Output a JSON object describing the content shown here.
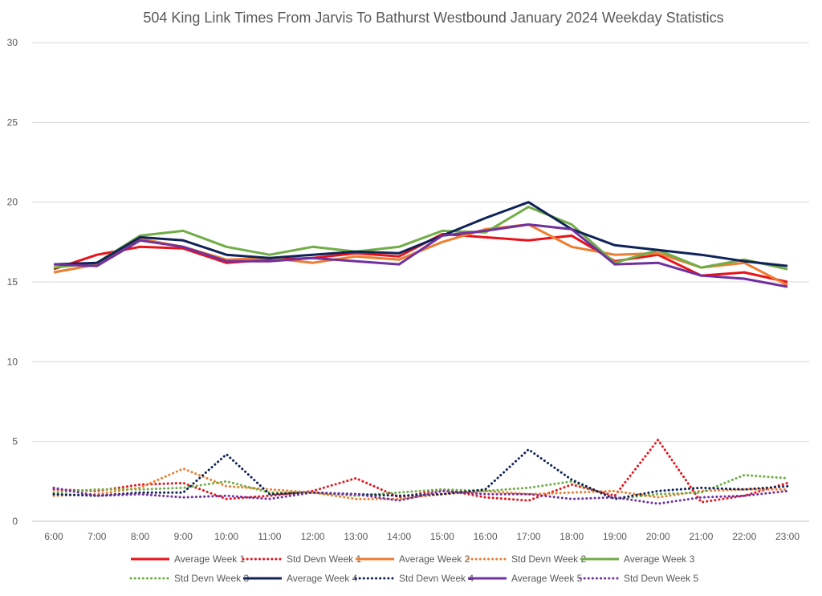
{
  "chart_data": {
    "type": "line",
    "title": "504 King Link Times From Jarvis To Bathurst Westbound January 2024 Weekday Statistics",
    "xlabel": "",
    "ylabel": "",
    "ylim": [
      0,
      30
    ],
    "yticks": [
      0,
      5,
      10,
      15,
      20,
      25,
      30
    ],
    "grid": true,
    "legend_position": "bottom",
    "categories": [
      "6:00",
      "7:00",
      "8:00",
      "9:00",
      "10:00",
      "11:00",
      "12:00",
      "13:00",
      "14:00",
      "15:00",
      "16:00",
      "17:00",
      "18:00",
      "19:00",
      "20:00",
      "21:00",
      "22:00",
      "23:00"
    ],
    "series": [
      {
        "name": "Average Week 1",
        "color": "#e8131b",
        "style": "solid",
        "values": [
          15.8,
          16.7,
          17.2,
          17.1,
          16.2,
          16.4,
          16.5,
          16.8,
          16.6,
          18.0,
          17.8,
          17.6,
          17.9,
          16.3,
          16.7,
          15.4,
          15.6,
          15.0
        ]
      },
      {
        "name": "Std Devn Week 1",
        "color": "#e8131b",
        "style": "dotted",
        "values": [
          2.0,
          1.9,
          2.3,
          2.4,
          1.4,
          1.6,
          1.9,
          2.7,
          1.5,
          2.0,
          1.5,
          1.3,
          2.3,
          1.6,
          5.1,
          1.2,
          1.6,
          2.4
        ]
      },
      {
        "name": "Average Week 2",
        "color": "#ed7d31",
        "style": "solid",
        "values": [
          15.6,
          16.1,
          17.7,
          17.2,
          16.4,
          16.5,
          16.2,
          16.6,
          16.4,
          17.5,
          18.3,
          18.6,
          17.2,
          16.7,
          16.8,
          15.9,
          16.2,
          14.8
        ]
      },
      {
        "name": "Std Devn Week 2",
        "color": "#ed7d31",
        "style": "dotted",
        "values": [
          1.6,
          1.7,
          2.1,
          3.3,
          2.2,
          2.0,
          1.8,
          1.4,
          1.4,
          1.7,
          1.9,
          1.7,
          1.8,
          1.9,
          1.5,
          1.9,
          2.0,
          2.0
        ]
      },
      {
        "name": "Average Week 3",
        "color": "#70ad47",
        "style": "solid",
        "values": [
          15.9,
          16.2,
          17.9,
          18.2,
          17.2,
          16.7,
          17.2,
          16.9,
          17.2,
          18.2,
          18.1,
          19.7,
          18.6,
          16.2,
          17.0,
          15.9,
          16.4,
          15.8
        ]
      },
      {
        "name": "Std Devn Week 3",
        "color": "#70ad47",
        "style": "dotted",
        "values": [
          1.8,
          2.0,
          2.0,
          2.1,
          2.5,
          1.8,
          1.8,
          1.6,
          1.8,
          2.0,
          1.9,
          2.1,
          2.5,
          1.4,
          1.7,
          1.8,
          2.9,
          2.7
        ]
      },
      {
        "name": "Average Week 4",
        "color": "#0f2358",
        "style": "solid",
        "values": [
          16.1,
          16.2,
          17.8,
          17.6,
          16.7,
          16.5,
          16.7,
          16.9,
          16.8,
          17.9,
          19.0,
          20.0,
          18.3,
          17.3,
          17.0,
          16.7,
          16.3,
          16.0
        ]
      },
      {
        "name": "Std Devn Week 4",
        "color": "#0f2358",
        "style": "dotted",
        "values": [
          1.7,
          1.6,
          1.8,
          1.8,
          4.2,
          1.7,
          1.8,
          1.7,
          1.6,
          1.7,
          2.0,
          4.5,
          2.6,
          1.4,
          1.9,
          2.1,
          2.0,
          2.2
        ]
      },
      {
        "name": "Average Week 5",
        "color": "#7030a0",
        "style": "solid",
        "values": [
          16.1,
          16.0,
          17.6,
          17.2,
          16.3,
          16.3,
          16.5,
          16.3,
          16.1,
          17.9,
          18.2,
          18.6,
          18.3,
          16.1,
          16.2,
          15.4,
          15.2,
          14.7
        ]
      },
      {
        "name": "Std Devn Week 5",
        "color": "#7030a0",
        "style": "dotted",
        "values": [
          2.1,
          1.6,
          1.7,
          1.5,
          1.6,
          1.4,
          1.8,
          1.7,
          1.3,
          1.9,
          1.7,
          1.7,
          1.4,
          1.5,
          1.1,
          1.5,
          1.6,
          1.9
        ]
      }
    ]
  }
}
